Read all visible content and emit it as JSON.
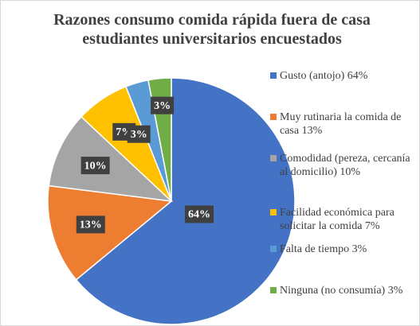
{
  "chart_data": {
    "type": "pie",
    "title": "Razones consumo comida rápida fuera de casa estudiantes universitarios encuestados",
    "categories": [
      "Gusto (antojo) 64%",
      "Muy rutinaria la comida de casa 13%",
      "Comodidad (pereza, cercanía al domicilio) 10%",
      "Facilidad económica para solicitar la comida 7%",
      "Falta de tiempo 3%",
      "Ninguna (no consumía) 3%"
    ],
    "values": [
      64,
      13,
      10,
      7,
      3,
      3
    ],
    "value_labels": [
      "64%",
      "13%",
      "10%",
      "7%",
      "3%",
      "3%"
    ],
    "colors": [
      "#4472c4",
      "#ed7d31",
      "#a5a5a5",
      "#ffc000",
      "#5b9bd5",
      "#70ad47"
    ],
    "legend": "right"
  }
}
